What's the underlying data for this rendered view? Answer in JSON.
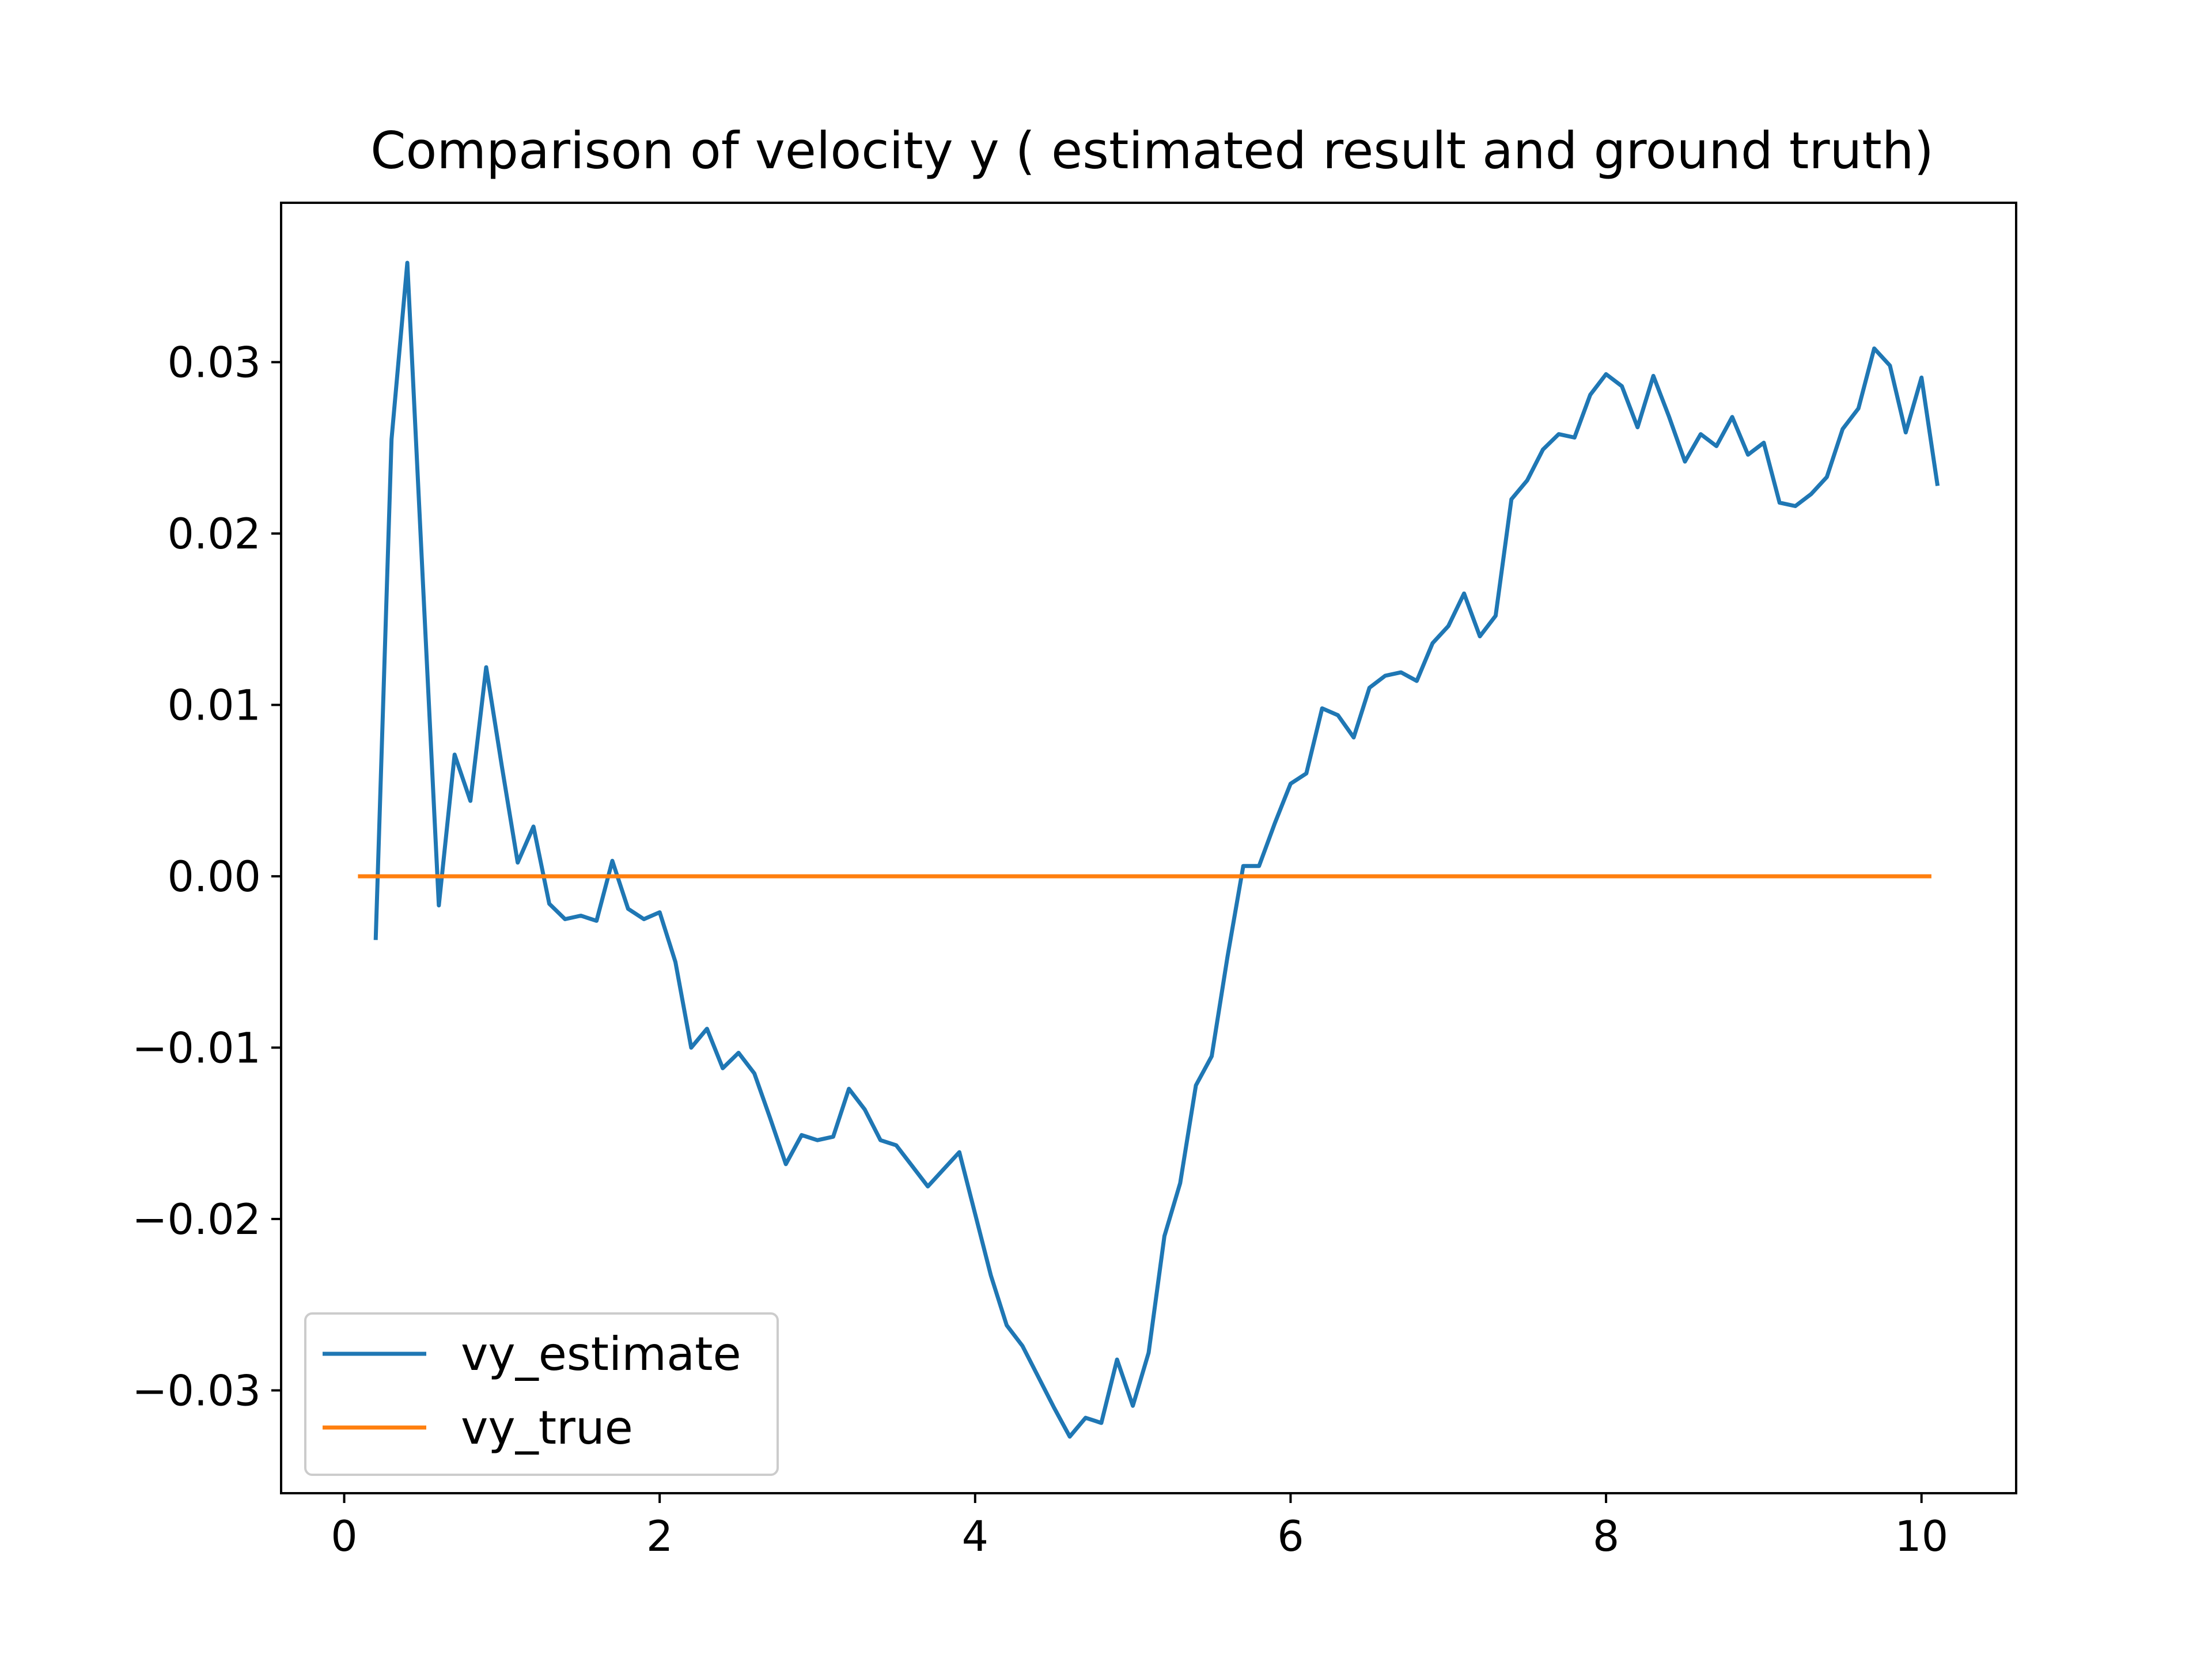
{
  "chart_data": {
    "type": "line",
    "title": "Comparison of velocity y ( estimated result and ground truth)",
    "xlabel": "",
    "ylabel": "",
    "xlim": [
      -0.4,
      10.6
    ],
    "ylim": [
      -0.036,
      0.0393
    ],
    "xticks": [
      0,
      2,
      4,
      6,
      8,
      10
    ],
    "xtick_labels": [
      "0",
      "2",
      "4",
      "6",
      "8",
      "10"
    ],
    "yticks": [
      -0.03,
      -0.02,
      -0.01,
      0.0,
      0.01,
      0.02,
      0.03
    ],
    "ytick_labels": [
      "−0.03",
      "−0.02",
      "−0.01",
      "0.00",
      "0.01",
      "0.02",
      "0.03"
    ],
    "grid": false,
    "legend_position": "lower-left",
    "series": [
      {
        "name": "vy_estimate",
        "color": "#1f77b4",
        "x": [
          0.2,
          0.3,
          0.4,
          0.5,
          0.6,
          0.7,
          0.8,
          0.9,
          1.0,
          1.1,
          1.2,
          1.3,
          1.4,
          1.5,
          1.6,
          1.7,
          1.8,
          1.9,
          2.0,
          2.1,
          2.2,
          2.3,
          2.4,
          2.5,
          2.6,
          2.7,
          2.8,
          2.9,
          3.0,
          3.1,
          3.2,
          3.3,
          3.4,
          3.5,
          3.6,
          3.7,
          3.8,
          3.9,
          4.0,
          4.1,
          4.2,
          4.3,
          4.4,
          4.5,
          4.6,
          4.7,
          4.8,
          4.9,
          5.0,
          5.1,
          5.2,
          5.3,
          5.4,
          5.5,
          5.6,
          5.7,
          5.8,
          5.9,
          6.0,
          6.1,
          6.2,
          6.3,
          6.4,
          6.5,
          6.6,
          6.7,
          6.8,
          6.9,
          7.0,
          7.1,
          7.2,
          7.3,
          7.4,
          7.5,
          7.6,
          7.7,
          7.8,
          7.9,
          8.0,
          8.1,
          8.2,
          8.3,
          8.4,
          8.5,
          8.6,
          8.7,
          8.8,
          8.9,
          9.0,
          9.1,
          9.2,
          9.3,
          9.4,
          9.5,
          9.6,
          9.7,
          9.8,
          9.9,
          10.0,
          10.1
        ],
        "y": [
          -0.0036,
          0.0255,
          0.0358,
          0.017,
          -0.0017,
          0.0071,
          0.0044,
          0.0122,
          0.0064,
          0.0008,
          0.0029,
          -0.0016,
          -0.0025,
          -0.0023,
          -0.0026,
          0.0009,
          -0.0019,
          -0.0025,
          -0.0021,
          -0.005,
          -0.01,
          -0.0089,
          -0.0112,
          -0.0103,
          -0.0115,
          -0.0141,
          -0.0168,
          -0.0151,
          -0.0154,
          -0.0152,
          -0.0124,
          -0.0136,
          -0.0154,
          -0.0157,
          -0.0169,
          -0.0181,
          -0.0171,
          -0.0161,
          -0.0197,
          -0.0233,
          -0.0262,
          -0.0274,
          -0.0292,
          -0.031,
          -0.0327,
          -0.0316,
          -0.0319,
          -0.0282,
          -0.0309,
          -0.0278,
          -0.021,
          -0.0179,
          -0.0122,
          -0.0105,
          -0.0047,
          0.0006,
          0.0006,
          0.0031,
          0.0054,
          0.006,
          0.0098,
          0.0094,
          0.0081,
          0.011,
          0.0117,
          0.0119,
          0.0114,
          0.0136,
          0.0146,
          0.0165,
          0.014,
          0.0152,
          0.022,
          0.0231,
          0.0249,
          0.0258,
          0.0256,
          0.0281,
          0.0293,
          0.0286,
          0.0262,
          0.0292,
          0.0268,
          0.0242,
          0.0258,
          0.0251,
          0.0268,
          0.0246,
          0.0253,
          0.0218,
          0.0216,
          0.0223,
          0.0233,
          0.0261,
          0.0273,
          0.0308,
          0.0298,
          0.0259,
          0.0291,
          0.0229
        ]
      },
      {
        "name": "vy_true",
        "color": "#ff7f0e",
        "x": [
          0.1,
          10.05
        ],
        "y": [
          0.0,
          0.0
        ]
      }
    ]
  }
}
